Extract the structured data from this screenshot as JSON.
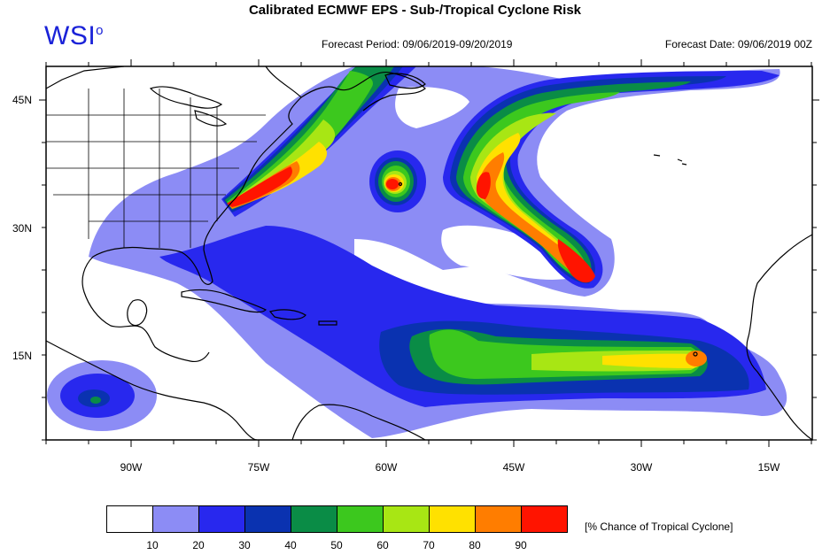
{
  "header": {
    "title": "Calibrated ECMWF EPS - Sub-/Tropical Cyclone Risk",
    "logo_text": "WSI",
    "logo_mark": "o",
    "forecast_period": "Forecast Period: 09/06/2019-09/20/2019",
    "forecast_date": "Forecast Date: 09/06/2019 00Z"
  },
  "axes": {
    "lon_labels": [
      "90W",
      "75W",
      "60W",
      "45W",
      "30W",
      "15W"
    ],
    "lat_labels": [
      "45N",
      "30N",
      "15N"
    ]
  },
  "legend": {
    "caption": "[% Chance of Tropical Cyclone]",
    "thresholds": [
      "10",
      "20",
      "30",
      "40",
      "50",
      "60",
      "70",
      "80",
      "90"
    ],
    "colors": [
      "#ffffff",
      "#8c8cf5",
      "#2828ee",
      "#0a32b0",
      "#0a8c46",
      "#3cc81e",
      "#a8e614",
      "#ffe100",
      "#ff7d00",
      "#ff1400"
    ]
  },
  "colors": {
    "land_line": "#000000",
    "c10": "#8c8cf5",
    "c20": "#2828ee",
    "c30": "#0a32b0",
    "c40": "#0a8c46",
    "c50": "#3cc81e",
    "c60": "#a8e614",
    "c70": "#ffe100",
    "c80": "#ff7d00",
    "c90": "#ff1400"
  }
}
